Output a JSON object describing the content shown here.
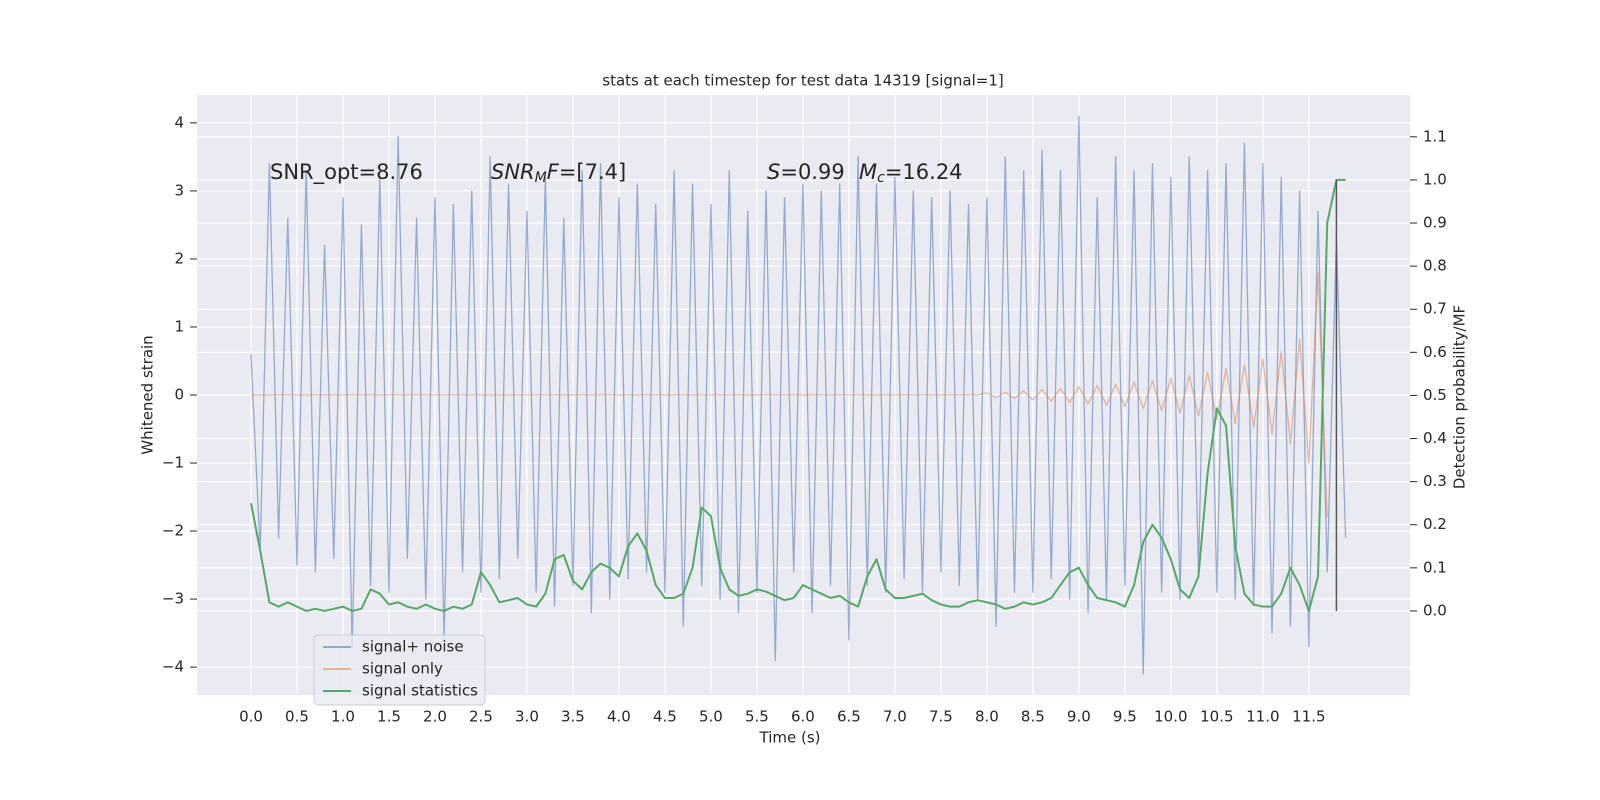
{
  "chart_data": {
    "type": "line",
    "title": "stats at each timestep for test data 14319 [signal=1]",
    "x_label": "Time (s)",
    "y_label": "Whitened strain",
    "y2_label": "Detection probability/MF",
    "grid": true,
    "legend": "lower left",
    "xlim": [
      -0.587,
      12.6
    ],
    "ylim": [
      -4.41,
      4.41
    ],
    "y2lim": [
      -0.195,
      1.197
    ],
    "xticks": [
      {
        "value": 0,
        "label": "0.0"
      },
      0.5,
      {
        "value": 1,
        "label": "1.0"
      },
      1.5,
      {
        "value": 2,
        "label": "2.0"
      },
      2.5,
      {
        "value": 3,
        "label": "3.0"
      },
      3.5,
      {
        "value": 4,
        "label": "4.0"
      },
      4.5,
      {
        "value": 5,
        "label": "5.0"
      },
      5.5,
      {
        "value": 6,
        "label": "6.0"
      },
      6.5,
      {
        "value": 7,
        "label": "7.0"
      },
      7.5,
      {
        "value": 8,
        "label": "8.0"
      },
      8.5,
      {
        "value": 9,
        "label": "9.0"
      },
      9.5,
      {
        "value": 10,
        "label": "10.0"
      },
      10.5,
      {
        "value": 11,
        "label": "11.0"
      },
      11.5
    ],
    "yticks": [
      {
        "value": -4,
        "label": "−4"
      },
      {
        "value": -3,
        "label": "−3"
      },
      {
        "value": -2,
        "label": "−2"
      },
      {
        "value": -1,
        "label": "−1"
      },
      0,
      1,
      2,
      3,
      4
    ],
    "y2ticks": [
      {
        "value": 0,
        "label": "0.0"
      },
      0.1,
      0.2,
      0.3,
      0.4,
      0.5,
      0.6,
      0.7,
      0.8,
      0.9,
      {
        "value": 1,
        "label": "1.0"
      },
      1.1
    ],
    "annotations": [
      {
        "parts": [
          {
            "text": "SNR_opt=8.76"
          }
        ]
      },
      {
        "parts": [
          {
            "text": "SNR",
            "italic": true
          },
          {
            "text": "M",
            "italic": true,
            "sub": true
          },
          {
            "text": "F",
            "italic": true
          },
          {
            "text": "=[7.4]"
          }
        ]
      },
      {
        "parts": [
          {
            "text": "S",
            "italic": true
          },
          {
            "text": "=0.99"
          }
        ]
      },
      {
        "parts": [
          {
            "text": "M",
            "italic": true
          },
          {
            "text": "c",
            "italic": true,
            "sub": true
          },
          {
            "text": "=16.24"
          }
        ]
      }
    ],
    "vline": {
      "x": 11.8,
      "ymin": 0,
      "ymax": 1,
      "color": "#555555"
    },
    "x": [
      0.0,
      0.1,
      0.2,
      0.3,
      0.4,
      0.5,
      0.6,
      0.7,
      0.8,
      0.9,
      1.0,
      1.1,
      1.2,
      1.3,
      1.4,
      1.5,
      1.6,
      1.7,
      1.8,
      1.9,
      2.0,
      2.1,
      2.2,
      2.3,
      2.4,
      2.5,
      2.6,
      2.7,
      2.8,
      2.9,
      3.0,
      3.1,
      3.2,
      3.3,
      3.4,
      3.5,
      3.6,
      3.7,
      3.8,
      3.9,
      4.0,
      4.1,
      4.2,
      4.3,
      4.4,
      4.5,
      4.6,
      4.7,
      4.8,
      4.9,
      5.0,
      5.1,
      5.2,
      5.3,
      5.4,
      5.5,
      5.6,
      5.7,
      5.8,
      5.9,
      6.0,
      6.1,
      6.2,
      6.3,
      6.4,
      6.5,
      6.6,
      6.7,
      6.8,
      6.9,
      7.0,
      7.1,
      7.2,
      7.3,
      7.4,
      7.5,
      7.6,
      7.7,
      7.8,
      7.9,
      8.0,
      8.1,
      8.2,
      8.3,
      8.4,
      8.5,
      8.6,
      8.7,
      8.8,
      8.9,
      9.0,
      9.1,
      9.2,
      9.3,
      9.4,
      9.5,
      9.6,
      9.7,
      9.8,
      9.9,
      10.0,
      10.1,
      10.2,
      10.3,
      10.4,
      10.5,
      10.6,
      10.7,
      10.8,
      10.9,
      11.0,
      11.1,
      11.2,
      11.3,
      11.4,
      11.5,
      11.6,
      11.7,
      11.8,
      11.9
    ],
    "series": [
      {
        "name": "signal+ noise",
        "color": "#4c72b0",
        "values": [
          0.6,
          -2.3,
          3.4,
          -2.1,
          2.6,
          -2.5,
          3.3,
          -2.6,
          2.2,
          -2.4,
          2.9,
          -3.7,
          2.5,
          -2.8,
          3.2,
          -2.9,
          3.8,
          -2.4,
          2.6,
          -3.0,
          2.9,
          -3.6,
          2.8,
          -2.6,
          3.0,
          -2.9,
          3.5,
          -2.7,
          3.1,
          -2.4,
          2.7,
          -2.9,
          3.2,
          -3.1,
          2.6,
          -2.8,
          3.3,
          -3.2,
          3.4,
          -3.0,
          2.9,
          -2.7,
          3.1,
          -2.6,
          2.8,
          -2.9,
          3.3,
          -3.4,
          3.1,
          -2.8,
          2.8,
          -3.0,
          3.3,
          -3.2,
          2.7,
          -2.9,
          3.0,
          -3.9,
          2.9,
          -2.6,
          3.1,
          -3.2,
          3.0,
          -2.8,
          3.1,
          -3.6,
          3.5,
          -2.8,
          3.1,
          -2.9,
          3.2,
          -2.7,
          3.0,
          -2.9,
          2.9,
          -2.6,
          3.0,
          -2.8,
          2.8,
          -3.0,
          2.9,
          -3.4,
          3.5,
          -2.9,
          3.3,
          -2.9,
          3.6,
          -2.7,
          3.3,
          -3.0,
          4.1,
          -3.2,
          2.9,
          -3.0,
          3.5,
          -2.8,
          3.3,
          -4.1,
          3.4,
          -2.9,
          3.2,
          -3.0,
          3.5,
          -2.6,
          3.3,
          -2.9,
          3.4,
          -3.0,
          3.7,
          -3.1,
          3.4,
          -3.5,
          3.2,
          -3.4,
          3.0,
          -3.7,
          2.7,
          -2.6,
          2.3,
          -2.1
        ]
      },
      {
        "name": "signal only",
        "color": "#dd8452",
        "values": [
          0,
          0,
          0,
          0,
          0,
          0,
          0,
          0,
          0,
          0,
          0,
          0,
          0,
          0,
          0,
          0,
          0,
          0,
          0,
          0,
          0,
          0,
          0,
          0,
          0,
          0,
          0,
          0,
          0,
          0,
          0,
          0,
          0,
          0,
          0,
          0,
          0,
          0,
          0,
          0,
          0,
          0,
          0,
          0,
          0,
          0,
          0,
          0,
          0,
          0,
          0,
          0,
          0,
          0,
          0,
          0,
          0,
          0,
          0,
          0,
          0,
          0,
          0,
          0,
          0,
          0,
          0,
          0,
          0,
          0,
          0,
          0,
          0,
          0,
          0,
          0,
          0,
          0,
          0,
          0,
          0.03,
          -0.04,
          0.04,
          -0.05,
          0.06,
          -0.07,
          0.08,
          -0.09,
          0.1,
          -0.11,
          0.12,
          -0.13,
          0.14,
          -0.15,
          0.16,
          -0.17,
          0.19,
          -0.2,
          0.21,
          -0.23,
          0.25,
          -0.27,
          0.29,
          -0.31,
          0.33,
          -0.36,
          0.39,
          -0.42,
          0.45,
          -0.48,
          0.53,
          -0.58,
          0.64,
          -0.72,
          0.82,
          -1.0,
          1.8,
          -1.8,
          null,
          null
        ]
      },
      {
        "name": "signal statistics",
        "color": "#55a868",
        "axis": "y2",
        "values": [
          0.25,
          0.14,
          0.02,
          0.01,
          0.02,
          0.01,
          0.0,
          0.005,
          0.0,
          0.005,
          0.01,
          0.0,
          0.005,
          0.05,
          0.04,
          0.015,
          0.02,
          0.01,
          0.005,
          0.015,
          0.005,
          0.0,
          0.01,
          0.005,
          0.015,
          0.09,
          0.06,
          0.02,
          0.025,
          0.03,
          0.015,
          0.01,
          0.04,
          0.12,
          0.13,
          0.07,
          0.05,
          0.09,
          0.11,
          0.1,
          0.08,
          0.15,
          0.18,
          0.14,
          0.06,
          0.03,
          0.03,
          0.04,
          0.1,
          0.24,
          0.22,
          0.1,
          0.05,
          0.035,
          0.04,
          0.05,
          0.045,
          0.035,
          0.025,
          0.03,
          0.06,
          0.05,
          0.04,
          0.03,
          0.035,
          0.02,
          0.01,
          0.08,
          0.12,
          0.05,
          0.03,
          0.03,
          0.035,
          0.04,
          0.025,
          0.015,
          0.01,
          0.01,
          0.02,
          0.025,
          0.02,
          0.015,
          0.005,
          0.01,
          0.02,
          0.015,
          0.02,
          0.03,
          0.06,
          0.09,
          0.1,
          0.06,
          0.03,
          0.025,
          0.02,
          0.01,
          0.06,
          0.16,
          0.2,
          0.17,
          0.12,
          0.05,
          0.03,
          0.08,
          0.32,
          0.47,
          0.43,
          0.15,
          0.04,
          0.015,
          0.01,
          0.01,
          0.04,
          0.1,
          0.06,
          0.0,
          0.08,
          0.9,
          1.0,
          1.0
        ]
      }
    ]
  }
}
